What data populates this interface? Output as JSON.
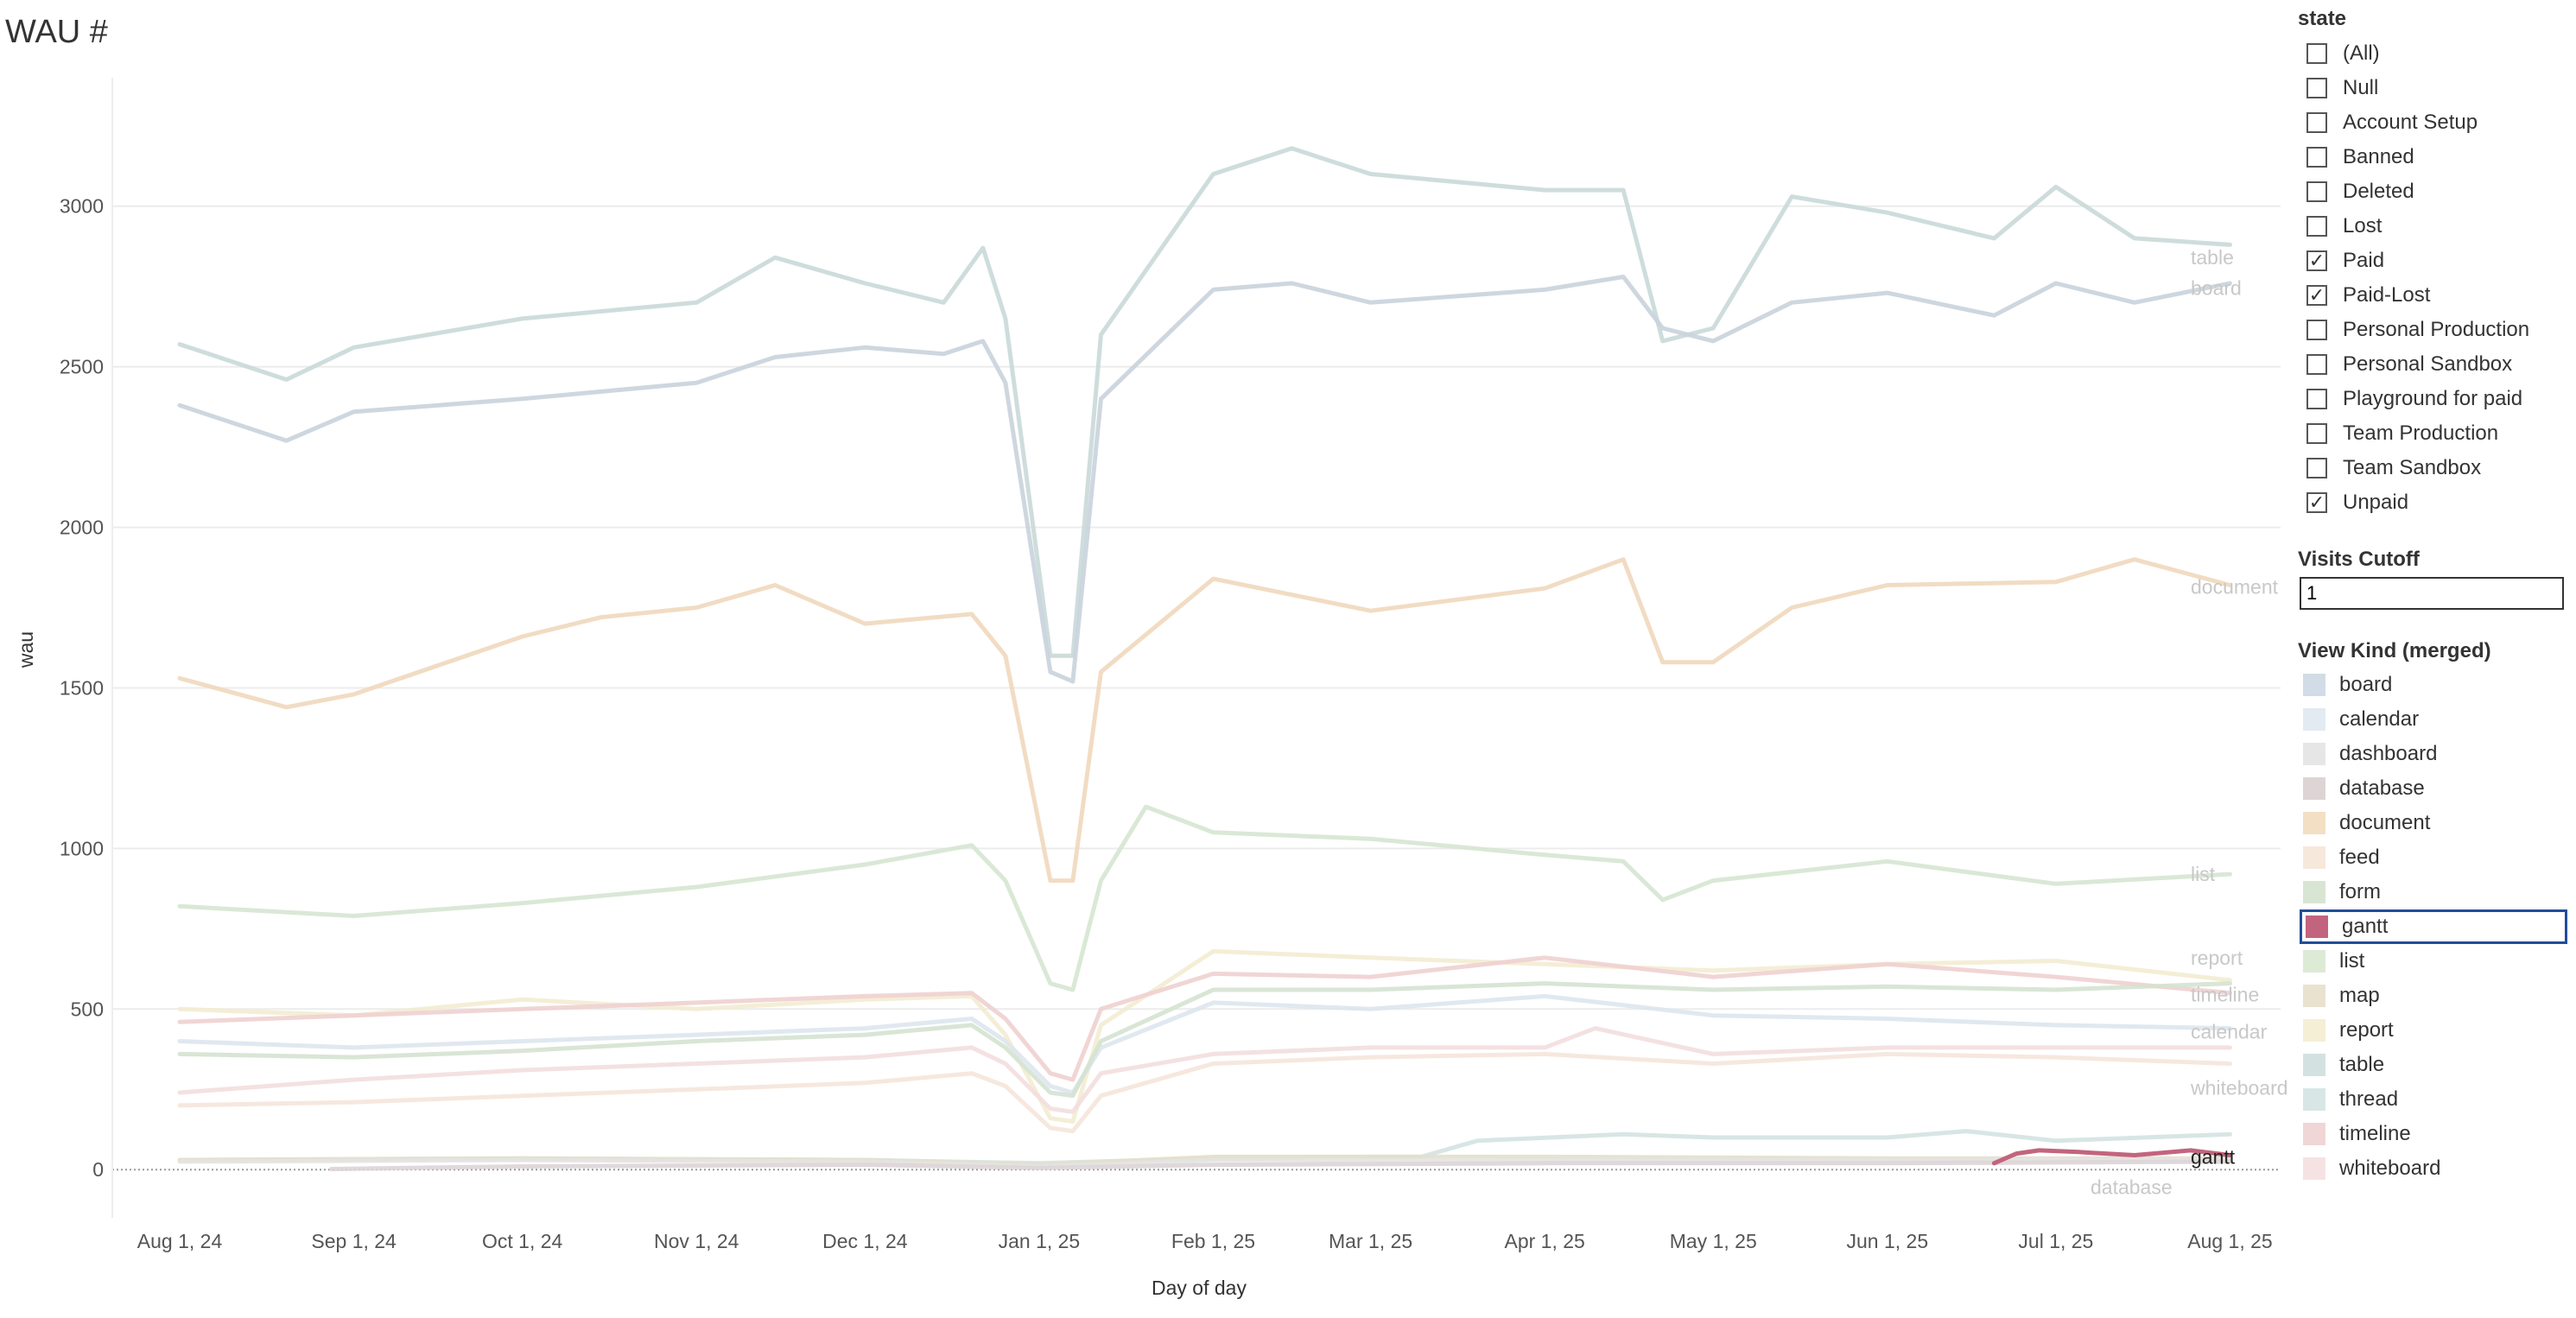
{
  "page": {
    "title": "WAU #"
  },
  "chart_data": {
    "type": "line",
    "title": "WAU #",
    "xlabel": "Day of day",
    "ylabel": "wau",
    "ylim": [
      -150,
      3400
    ],
    "yticks": [
      0,
      500,
      1000,
      1500,
      2000,
      2500,
      3000
    ],
    "xlim": [
      "2024-07-20",
      "2025-08-10"
    ],
    "xticks": [
      {
        "date": "2024-08-01",
        "label": "Aug 1, 24"
      },
      {
        "date": "2024-09-01",
        "label": "Sep 1, 24"
      },
      {
        "date": "2024-10-01",
        "label": "Oct 1, 24"
      },
      {
        "date": "2024-11-01",
        "label": "Nov 1, 24"
      },
      {
        "date": "2024-12-01",
        "label": "Dec 1, 24"
      },
      {
        "date": "2025-01-01",
        "label": "Jan 1, 25"
      },
      {
        "date": "2025-02-01",
        "label": "Feb 1, 25"
      },
      {
        "date": "2025-03-01",
        "label": "Mar 1, 25"
      },
      {
        "date": "2025-04-01",
        "label": "Apr 1, 25"
      },
      {
        "date": "2025-05-01",
        "label": "May 1, 25"
      },
      {
        "date": "2025-06-01",
        "label": "Jun 1, 25"
      },
      {
        "date": "2025-07-01",
        "label": "Jul 1, 25"
      },
      {
        "date": "2025-08-01",
        "label": "Aug 1, 25"
      }
    ],
    "grid": "horizontal",
    "series": [
      {
        "name": "table",
        "color": "#c9d9d8",
        "highlight": false,
        "x": [
          "2024-08-01",
          "2024-08-20",
          "2024-09-01",
          "2024-10-01",
          "2024-11-01",
          "2024-11-15",
          "2024-12-01",
          "2024-12-15",
          "2024-12-22",
          "2024-12-26",
          "2025-01-03",
          "2025-01-07",
          "2025-01-12",
          "2025-02-01",
          "2025-02-15",
          "2025-03-01",
          "2025-04-01",
          "2025-04-15",
          "2025-04-22",
          "2025-05-01",
          "2025-05-15",
          "2025-06-01",
          "2025-06-20",
          "2025-07-01",
          "2025-07-15",
          "2025-08-01"
        ],
        "values": [
          2570,
          2460,
          2560,
          2650,
          2700,
          2840,
          2760,
          2700,
          2870,
          2650,
          1600,
          1600,
          2600,
          3100,
          3180,
          3100,
          3050,
          3050,
          2580,
          2620,
          3030,
          2980,
          2900,
          3060,
          2900,
          2880
        ]
      },
      {
        "name": "board",
        "color": "#c9d3dc",
        "highlight": false,
        "x": [
          "2024-08-01",
          "2024-08-20",
          "2024-09-01",
          "2024-10-01",
          "2024-11-01",
          "2024-11-15",
          "2024-12-01",
          "2024-12-15",
          "2024-12-22",
          "2024-12-26",
          "2025-01-03",
          "2025-01-07",
          "2025-01-12",
          "2025-02-01",
          "2025-02-15",
          "2025-03-01",
          "2025-04-01",
          "2025-04-15",
          "2025-04-22",
          "2025-05-01",
          "2025-05-15",
          "2025-06-01",
          "2025-06-20",
          "2025-07-01",
          "2025-07-15",
          "2025-08-01"
        ],
        "values": [
          2380,
          2270,
          2360,
          2400,
          2450,
          2530,
          2560,
          2540,
          2580,
          2450,
          1550,
          1520,
          2400,
          2740,
          2760,
          2700,
          2740,
          2780,
          2620,
          2580,
          2700,
          2730,
          2660,
          2760,
          2700,
          2760
        ]
      },
      {
        "name": "document",
        "color": "#f0d8bd",
        "highlight": false,
        "x": [
          "2024-08-01",
          "2024-08-20",
          "2024-09-01",
          "2024-10-01",
          "2024-10-15",
          "2024-11-01",
          "2024-11-15",
          "2024-12-01",
          "2024-12-20",
          "2024-12-26",
          "2025-01-03",
          "2025-01-07",
          "2025-01-12",
          "2025-02-01",
          "2025-03-01",
          "2025-04-01",
          "2025-04-15",
          "2025-04-22",
          "2025-05-01",
          "2025-05-15",
          "2025-06-01",
          "2025-07-01",
          "2025-07-15",
          "2025-08-01"
        ],
        "values": [
          1530,
          1440,
          1480,
          1660,
          1720,
          1750,
          1820,
          1700,
          1730,
          1600,
          900,
          900,
          1550,
          1840,
          1740,
          1810,
          1900,
          1580,
          1580,
          1750,
          1820,
          1830,
          1900,
          1820
        ]
      },
      {
        "name": "list",
        "color": "#d6e6d1",
        "highlight": false,
        "x": [
          "2024-08-01",
          "2024-09-01",
          "2024-10-01",
          "2024-11-01",
          "2024-12-01",
          "2024-12-20",
          "2024-12-26",
          "2025-01-03",
          "2025-01-07",
          "2025-01-12",
          "2025-01-20",
          "2025-02-01",
          "2025-03-01",
          "2025-04-01",
          "2025-04-15",
          "2025-04-22",
          "2025-05-01",
          "2025-06-01",
          "2025-07-01",
          "2025-08-01"
        ],
        "values": [
          820,
          790,
          830,
          880,
          950,
          1010,
          900,
          580,
          560,
          900,
          1130,
          1050,
          1030,
          980,
          960,
          840,
          900,
          960,
          890,
          920
        ]
      },
      {
        "name": "report",
        "color": "#f3ecd2",
        "highlight": false,
        "x": [
          "2024-08-01",
          "2024-09-01",
          "2024-10-01",
          "2024-11-01",
          "2024-12-01",
          "2024-12-20",
          "2024-12-26",
          "2025-01-03",
          "2025-01-07",
          "2025-01-12",
          "2025-02-01",
          "2025-03-01",
          "2025-04-01",
          "2025-05-01",
          "2025-06-01",
          "2025-07-01",
          "2025-08-01"
        ],
        "values": [
          500,
          480,
          530,
          500,
          530,
          540,
          420,
          160,
          150,
          450,
          680,
          660,
          640,
          620,
          640,
          650,
          590
        ]
      },
      {
        "name": "timeline",
        "color": "#efd0d0",
        "highlight": false,
        "x": [
          "2024-08-01",
          "2024-09-01",
          "2024-10-01",
          "2024-11-01",
          "2024-12-01",
          "2024-12-20",
          "2024-12-26",
          "2025-01-03",
          "2025-01-07",
          "2025-01-12",
          "2025-02-01",
          "2025-03-01",
          "2025-04-01",
          "2025-05-01",
          "2025-06-01",
          "2025-07-01",
          "2025-08-01"
        ],
        "values": [
          460,
          480,
          500,
          520,
          540,
          550,
          470,
          300,
          280,
          500,
          610,
          600,
          660,
          600,
          640,
          600,
          550
        ]
      },
      {
        "name": "calendar",
        "color": "#dde5ee",
        "highlight": false,
        "x": [
          "2024-08-01",
          "2024-09-01",
          "2024-10-01",
          "2024-11-01",
          "2024-12-01",
          "2024-12-20",
          "2024-12-26",
          "2025-01-03",
          "2025-01-07",
          "2025-01-12",
          "2025-02-01",
          "2025-03-01",
          "2025-04-01",
          "2025-05-01",
          "2025-06-01",
          "2025-07-01",
          "2025-08-01"
        ],
        "values": [
          400,
          380,
          400,
          420,
          440,
          470,
          400,
          260,
          240,
          380,
          520,
          500,
          540,
          480,
          470,
          450,
          440
        ]
      },
      {
        "name": "form",
        "color": "#d5e2d0",
        "highlight": false,
        "x": [
          "2024-08-01",
          "2024-09-01",
          "2024-10-01",
          "2024-11-01",
          "2024-12-01",
          "2024-12-20",
          "2024-12-26",
          "2025-01-03",
          "2025-01-07",
          "2025-01-12",
          "2025-02-01",
          "2025-03-01",
          "2025-04-01",
          "2025-05-01",
          "2025-06-01",
          "2025-07-01",
          "2025-08-01"
        ],
        "values": [
          360,
          350,
          370,
          400,
          420,
          450,
          380,
          240,
          230,
          400,
          560,
          560,
          580,
          560,
          570,
          560,
          580
        ]
      },
      {
        "name": "whiteboard",
        "color": "#f3dede",
        "highlight": false,
        "x": [
          "2024-08-01",
          "2024-09-01",
          "2024-10-01",
          "2024-11-01",
          "2024-12-01",
          "2024-12-20",
          "2024-12-26",
          "2025-01-03",
          "2025-01-07",
          "2025-01-12",
          "2025-02-01",
          "2025-03-01",
          "2025-04-01",
          "2025-04-10",
          "2025-05-01",
          "2025-06-01",
          "2025-07-01",
          "2025-08-01"
        ],
        "values": [
          240,
          280,
          310,
          330,
          350,
          380,
          330,
          190,
          180,
          300,
          360,
          380,
          380,
          440,
          360,
          380,
          380,
          380
        ]
      },
      {
        "name": "feed",
        "color": "#f5e6da",
        "highlight": false,
        "x": [
          "2024-08-01",
          "2024-09-01",
          "2024-10-01",
          "2024-11-01",
          "2024-12-01",
          "2024-12-20",
          "2024-12-26",
          "2025-01-03",
          "2025-01-07",
          "2025-01-12",
          "2025-02-01",
          "2025-03-01",
          "2025-04-01",
          "2025-05-01",
          "2025-06-01",
          "2025-07-01",
          "2025-08-01"
        ],
        "values": [
          200,
          210,
          230,
          250,
          270,
          300,
          260,
          130,
          120,
          230,
          330,
          350,
          360,
          330,
          360,
          350,
          330
        ]
      },
      {
        "name": "thread",
        "color": "#d3e3e2",
        "highlight": false,
        "x": [
          "2024-08-01",
          "2024-10-01",
          "2024-12-01",
          "2025-01-01",
          "2025-02-01",
          "2025-03-01",
          "2025-03-10",
          "2025-03-20",
          "2025-04-15",
          "2025-05-01",
          "2025-06-01",
          "2025-06-15",
          "2025-07-01",
          "2025-08-01"
        ],
        "values": [
          30,
          35,
          30,
          20,
          35,
          40,
          40,
          90,
          110,
          100,
          100,
          120,
          90,
          110
        ]
      },
      {
        "name": "map",
        "color": "#e4dfca",
        "highlight": false,
        "x": [
          "2024-08-01",
          "2024-10-01",
          "2024-12-01",
          "2025-01-01",
          "2025-02-01",
          "2025-04-01",
          "2025-06-01",
          "2025-08-01"
        ],
        "values": [
          30,
          35,
          30,
          15,
          40,
          40,
          35,
          35
        ]
      },
      {
        "name": "dashboard",
        "color": "#e3e3e3",
        "highlight": false,
        "x": [
          "2024-08-01",
          "2024-10-01",
          "2024-12-01",
          "2025-01-01",
          "2025-02-01",
          "2025-04-01",
          "2025-06-01",
          "2025-08-01"
        ],
        "values": [
          25,
          30,
          25,
          10,
          30,
          30,
          30,
          30
        ]
      },
      {
        "name": "database",
        "color": "#ddd4d6",
        "highlight": false,
        "x": [
          "2024-08-28",
          "2024-10-01",
          "2024-12-01",
          "2025-01-01",
          "2025-02-01",
          "2025-04-01",
          "2025-06-01",
          "2025-08-01"
        ],
        "values": [
          2,
          10,
          15,
          5,
          15,
          20,
          20,
          25
        ]
      },
      {
        "name": "gantt",
        "color": "#c3647e",
        "highlight": true,
        "x": [
          "2025-06-20",
          "2025-06-24",
          "2025-06-28",
          "2025-07-05",
          "2025-07-15",
          "2025-07-25",
          "2025-08-01"
        ],
        "values": [
          20,
          50,
          60,
          55,
          45,
          60,
          45
        ]
      }
    ],
    "end_labels": [
      {
        "text": "table",
        "series": "table",
        "value": 2840
      },
      {
        "text": "board",
        "series": "board",
        "value": 2745
      },
      {
        "text": "document",
        "series": "document",
        "value": 1815
      },
      {
        "text": "list",
        "series": "list",
        "value": 920
      },
      {
        "text": "report",
        "series": "report",
        "value": 660
      },
      {
        "text": "timeline",
        "series": "timeline",
        "value": 545
      },
      {
        "text": "calendar",
        "series": "calendar",
        "value": 430
      },
      {
        "text": "whiteboard",
        "series": "whiteboard",
        "value": 255
      },
      {
        "text": "gantt",
        "series": "gantt",
        "value": 40
      },
      {
        "text": "database",
        "series": "database",
        "value": -55
      }
    ]
  },
  "filters": {
    "state": {
      "title": "state",
      "options": [
        {
          "label": "(All)",
          "checked": false
        },
        {
          "label": "Null",
          "checked": false
        },
        {
          "label": "Account Setup",
          "checked": false
        },
        {
          "label": "Banned",
          "checked": false
        },
        {
          "label": "Deleted",
          "checked": false
        },
        {
          "label": "Lost",
          "checked": false
        },
        {
          "label": "Paid",
          "checked": true
        },
        {
          "label": "Paid-Lost",
          "checked": true
        },
        {
          "label": "Personal Production",
          "checked": false
        },
        {
          "label": "Personal Sandbox",
          "checked": false
        },
        {
          "label": "Playground for paid",
          "checked": false
        },
        {
          "label": "Team Production",
          "checked": false
        },
        {
          "label": "Team Sandbox",
          "checked": false
        },
        {
          "label": "Unpaid",
          "checked": true
        }
      ]
    },
    "cutoff": {
      "title": "Visits Cutoff",
      "value": "1"
    },
    "view_kind": {
      "title": "View Kind (merged)",
      "items": [
        {
          "label": "board",
          "color": "#d2dce6",
          "selected": false
        },
        {
          "label": "calendar",
          "color": "#e3eaf1",
          "selected": false
        },
        {
          "label": "dashboard",
          "color": "#e6e6e6",
          "selected": false
        },
        {
          "label": "database",
          "color": "#ddd4d6",
          "selected": false
        },
        {
          "label": "document",
          "color": "#f3dfc4",
          "selected": false
        },
        {
          "label": "feed",
          "color": "#f7e8dc",
          "selected": false
        },
        {
          "label": "form",
          "color": "#d8e5d3",
          "selected": false
        },
        {
          "label": "gantt",
          "color": "#c3647e",
          "selected": true
        },
        {
          "label": "list",
          "color": "#dcead6",
          "selected": false
        },
        {
          "label": "map",
          "color": "#e8e2cf",
          "selected": false
        },
        {
          "label": "report",
          "color": "#f5efd6",
          "selected": false
        },
        {
          "label": "table",
          "color": "#d3e2e1",
          "selected": false
        },
        {
          "label": "thread",
          "color": "#d8e6e5",
          "selected": false
        },
        {
          "label": "timeline",
          "color": "#f0d6d6",
          "selected": false
        },
        {
          "label": "whiteboard",
          "color": "#f5e3e3",
          "selected": false
        }
      ]
    }
  }
}
